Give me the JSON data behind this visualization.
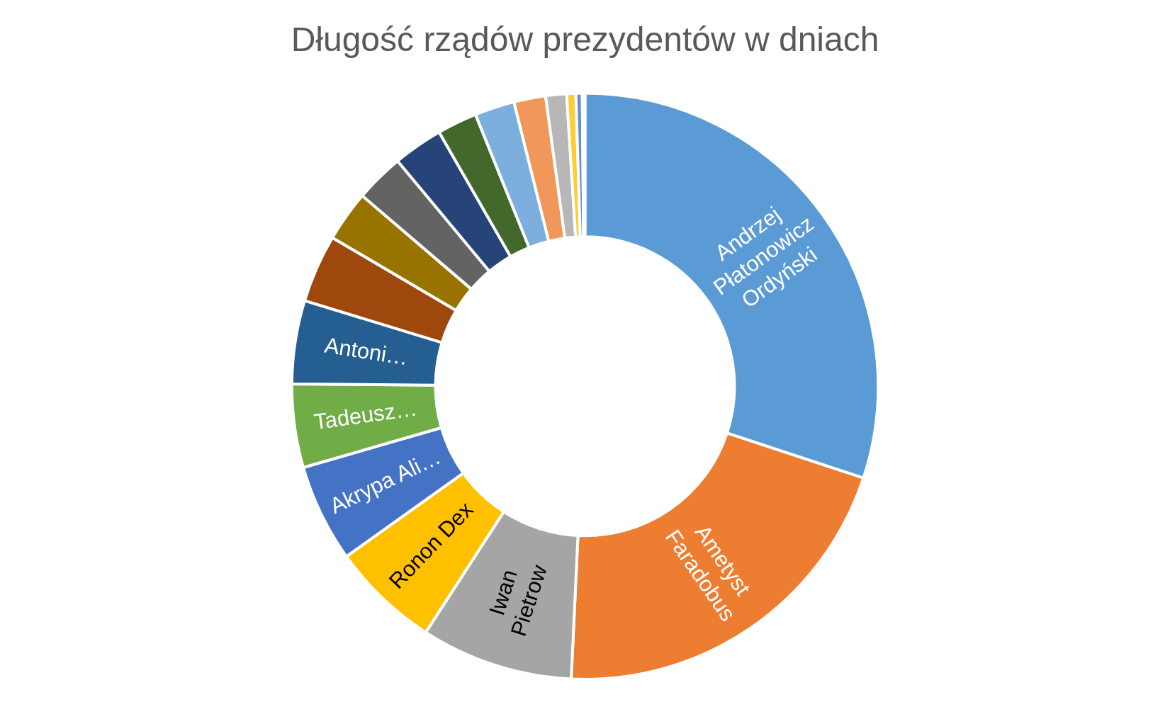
{
  "chart_data": {
    "type": "donut",
    "title": "Długość rządów prezydentów w dniach",
    "categories": [
      "Andrzej Płatonowicz Ordyński",
      "Ametyst Faradobus",
      "Iwan Pietrow",
      "Ronon Dex",
      "Akrypa Ali…",
      "Tadeusz…",
      "Antoni…",
      null,
      null,
      null,
      null,
      null,
      null,
      null,
      null,
      null,
      null,
      null
    ],
    "values": [
      30.1,
      20.7,
      8.4,
      6.0,
      5.4,
      4.6,
      4.6,
      3.75,
      2.8,
      2.7,
      2.75,
      2.2,
      2.2,
      1.75,
      1.15,
      0.5,
      0.35,
      0.15
    ],
    "colors": [
      "#5b9bd5",
      "#ed7d31",
      "#a5a5a5",
      "#ffc000",
      "#4472c4",
      "#70ad47",
      "#255e91",
      "#9e480e",
      "#997300",
      "#636363",
      "#264478",
      "#43682b",
      "#7cafdd",
      "#f1975a",
      "#b7b7b7",
      "#ffcd33",
      "#698ed0",
      "#8cc168"
    ],
    "legend": false
  }
}
